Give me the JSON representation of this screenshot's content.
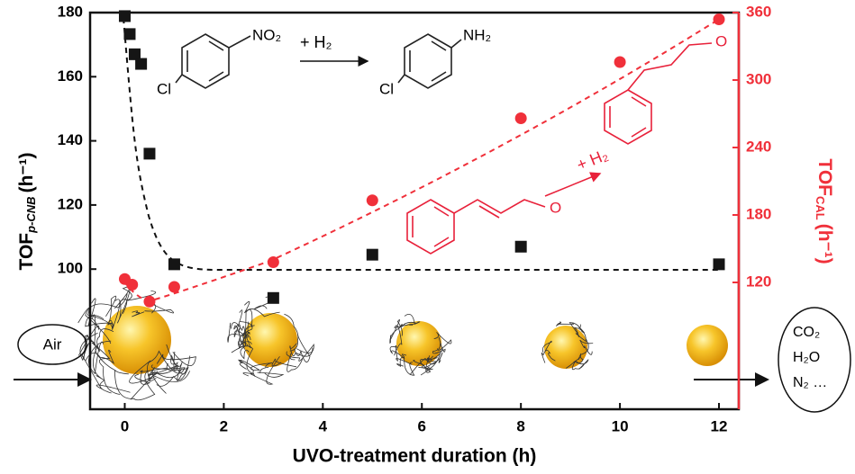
{
  "chart_data": {
    "type": "scatter",
    "xlabel": "UVO-treatment duration (h)",
    "ylabel": {
      "main": "TOF",
      "sub": "p-CNB",
      "unit": "(h⁻¹)"
    },
    "y2label": {
      "main": "TOF",
      "sub": "CAL",
      "unit": "(h⁻¹)"
    },
    "xlim": [
      -0.7,
      12.4
    ],
    "xticks": [
      0,
      2,
      4,
      6,
      8,
      10,
      12
    ],
    "ylim": [
      56.3,
      180
    ],
    "yticks": [
      100,
      120,
      140,
      160,
      180
    ],
    "y2lim": [
      7.2,
      360
    ],
    "y2ticks": [
      120,
      180,
      240,
      300,
      360
    ],
    "series": [
      {
        "name": "TOF p-CNB",
        "color": "#151515",
        "marker": "square",
        "x": [
          0,
          0.1,
          0.2,
          0.33,
          0.5,
          1,
          3,
          5,
          8,
          12
        ],
        "values": [
          178.9,
          173.3,
          167,
          164,
          136,
          101.5,
          91,
          104.5,
          107,
          101.5
        ]
      },
      {
        "name": "TOF CAL",
        "color": "#f0303a",
        "marker": "circle",
        "axis": "y2",
        "x": [
          0,
          0.15,
          0.5,
          1,
          3,
          5,
          8,
          10,
          12
        ],
        "values": [
          123,
          118,
          103,
          116,
          138,
          193,
          266,
          316,
          354
        ]
      }
    ],
    "annotations": {
      "air": "Air",
      "products": [
        "CO₂",
        "H₂O",
        "N₂ …"
      ],
      "cnb_no2": "NO₂",
      "cnb_h2": "+ H₂",
      "can_nh2": "NH₂",
      "cnb_cl": "Cl",
      "can_cl": "Cl",
      "cal_o": "O",
      "cal_h2": "+ H₂",
      "hcal_o": "O"
    }
  }
}
